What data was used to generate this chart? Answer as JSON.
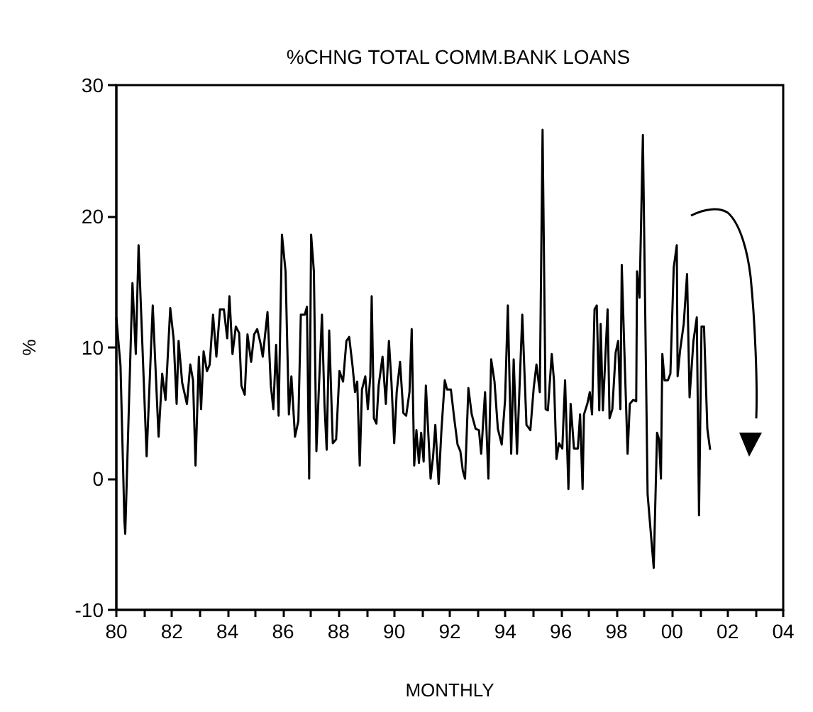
{
  "chart_data": {
    "type": "line",
    "title": "%CHNG TOTAL COMM.BANK LOANS",
    "xlabel": "MONTHLY",
    "ylabel": "%",
    "series": [
      {
        "color": "#000000",
        "x": [
          1980.0,
          1980.15,
          1980.29,
          1980.32,
          1980.58,
          1980.7,
          1980.8,
          1981.09,
          1981.31,
          1981.52,
          1981.65,
          1981.77,
          1981.94,
          1982.06,
          1982.17,
          1982.24,
          1982.37,
          1982.54,
          1982.66,
          1982.76,
          1982.85,
          1982.97,
          1983.05,
          1983.14,
          1983.26,
          1983.36,
          1983.48,
          1983.6,
          1983.73,
          1983.87,
          1983.99,
          1984.07,
          1984.18,
          1984.3,
          1984.42,
          1984.5,
          1984.62,
          1984.72,
          1984.85,
          1984.96,
          1985.07,
          1985.19,
          1985.27,
          1985.44,
          1985.56,
          1985.65,
          1985.75,
          1985.84,
          1985.96,
          1986.09,
          1986.21,
          1986.3,
          1986.43,
          1986.55,
          1986.64,
          1986.78,
          1986.86,
          1986.94,
          1987.01,
          1987.11,
          1987.2,
          1987.28,
          1987.4,
          1987.49,
          1987.57,
          1987.66,
          1987.79,
          1987.91,
          1988.03,
          1988.16,
          1988.28,
          1988.38,
          1988.5,
          1988.59,
          1988.67,
          1988.76,
          1988.84,
          1988.96,
          1989.05,
          1989.14,
          1989.19,
          1989.27,
          1989.36,
          1989.44,
          1989.58,
          1989.7,
          1989.81,
          1989.9,
          1990.0,
          1990.09,
          1990.21,
          1990.33,
          1990.43,
          1990.55,
          1990.63,
          1990.72,
          1990.8,
          1990.89,
          1990.97,
          1991.06,
          1991.14,
          1991.31,
          1991.4,
          1991.48,
          1991.6,
          1991.7,
          1991.82,
          1991.9,
          1992.04,
          1992.16,
          1992.28,
          1992.38,
          1992.47,
          1992.55,
          1992.67,
          1992.79,
          1992.93,
          1993.05,
          1993.13,
          1993.27,
          1993.39,
          1993.49,
          1993.61,
          1993.73,
          1993.87,
          1993.99,
          1994.09,
          1994.21,
          1994.3,
          1994.42,
          1994.61,
          1994.76,
          1994.9,
          1995.02,
          1995.12,
          1995.24,
          1995.34,
          1995.45,
          1995.53,
          1995.67,
          1995.75,
          1995.84,
          1995.93,
          1996.05,
          1996.15,
          1996.27,
          1996.35,
          1996.47,
          1996.61,
          1996.69,
          1996.78,
          1996.83,
          1996.95,
          1997.04,
          1997.12,
          1997.21,
          1997.29,
          1997.38,
          1997.43,
          1997.51,
          1997.68,
          1997.75,
          1997.85,
          1997.97,
          1998.06,
          1998.14,
          1998.19,
          1998.28,
          1998.4,
          1998.48,
          1998.6,
          1998.71,
          1998.74,
          1998.83,
          1998.95,
          1999.12,
          1999.34,
          1999.46,
          1999.53,
          1999.6,
          1999.65,
          1999.73,
          1999.85,
          1999.94,
          2000.06,
          2000.17,
          2000.2,
          2000.29,
          2000.42,
          2000.54,
          2000.63,
          2000.77,
          2000.89,
          2000.97,
          2001.06,
          2001.15,
          2001.27,
          2001.37
        ],
        "values": [
          12.3,
          8.6,
          -3.2,
          -4.2,
          14.9,
          9.5,
          17.8,
          1.7,
          13.2,
          3.2,
          8.0,
          6.0,
          13.0,
          10.7,
          5.7,
          10.5,
          7.3,
          5.7,
          8.7,
          7.5,
          1.0,
          9.3,
          5.3,
          9.7,
          8.2,
          8.7,
          12.5,
          9.3,
          12.9,
          12.9,
          10.7,
          13.9,
          9.5,
          11.6,
          11.1,
          7.1,
          6.4,
          11.0,
          8.9,
          11.0,
          11.4,
          10.3,
          9.3,
          12.7,
          7.1,
          5.3,
          10.2,
          4.8,
          18.6,
          15.8,
          4.9,
          7.8,
          3.2,
          4.4,
          12.5,
          12.5,
          13.1,
          0.0,
          18.6,
          15.8,
          2.1,
          6.4,
          12.5,
          5.7,
          2.2,
          11.3,
          2.7,
          3.0,
          8.2,
          7.4,
          10.5,
          10.8,
          8.6,
          6.6,
          7.4,
          1.0,
          6.8,
          7.8,
          5.3,
          7.8,
          13.9,
          4.6,
          4.2,
          7.1,
          9.3,
          5.7,
          10.5,
          7.4,
          2.7,
          6.6,
          8.9,
          5.0,
          4.8,
          6.6,
          11.4,
          1.0,
          3.7,
          1.2,
          3.5,
          1.3,
          7.1,
          0.0,
          1.7,
          4.1,
          -0.4,
          3.7,
          7.5,
          6.8,
          6.8,
          4.6,
          2.6,
          2.1,
          0.6,
          0.0,
          6.9,
          4.9,
          3.8,
          3.7,
          1.9,
          6.6,
          0.0,
          9.1,
          7.4,
          3.8,
          2.6,
          6.0,
          13.2,
          1.9,
          9.1,
          1.9,
          12.5,
          4.1,
          3.7,
          6.9,
          8.7,
          6.6,
          26.6,
          5.3,
          5.2,
          9.5,
          7.5,
          1.5,
          2.7,
          2.3,
          7.5,
          -0.8,
          5.7,
          2.3,
          2.3,
          4.9,
          -0.8,
          4.9,
          5.7,
          6.6,
          4.9,
          12.9,
          13.2,
          5.2,
          11.8,
          5.2,
          12.9,
          4.6,
          5.3,
          9.6,
          10.5,
          5.3,
          16.3,
          10.0,
          1.9,
          5.7,
          6.0,
          5.9,
          15.8,
          13.8,
          26.2,
          -1.2,
          -6.8,
          3.5,
          3.0,
          0.0,
          9.5,
          7.5,
          7.5,
          8.0,
          16.1,
          17.8,
          7.8,
          9.8,
          11.8,
          15.6,
          6.2,
          10.5,
          12.3,
          -2.8,
          11.6,
          11.6,
          3.8,
          2.2
        ]
      }
    ],
    "xlim": [
      1980,
      2004
    ],
    "xticks": [
      {
        "value": 1980,
        "label": "80"
      },
      {
        "value": 1981,
        "label": null
      },
      {
        "value": 1982,
        "label": "82"
      },
      {
        "value": 1983,
        "label": null
      },
      {
        "value": 1984,
        "label": "84"
      },
      {
        "value": 1985,
        "label": null
      },
      {
        "value": 1986,
        "label": "86"
      },
      {
        "value": 1987,
        "label": null
      },
      {
        "value": 1988,
        "label": "88"
      },
      {
        "value": 1989,
        "label": null
      },
      {
        "value": 1990,
        "label": "90"
      },
      {
        "value": 1991,
        "label": null
      },
      {
        "value": 1992,
        "label": "92"
      },
      {
        "value": 1993,
        "label": null
      },
      {
        "value": 1994,
        "label": "94"
      },
      {
        "value": 1995,
        "label": null
      },
      {
        "value": 1996,
        "label": "96"
      },
      {
        "value": 1997,
        "label": null
      },
      {
        "value": 1998,
        "label": "98"
      },
      {
        "value": 1999,
        "label": null
      },
      {
        "value": 2000,
        "label": "00"
      },
      {
        "value": 2001,
        "label": null
      },
      {
        "value": 2002,
        "label": "02"
      },
      {
        "value": 2003,
        "label": null
      },
      {
        "value": 2004,
        "label": "04"
      }
    ],
    "ylim": [
      -10,
      30
    ],
    "yticks": [
      -10,
      0,
      10,
      20,
      30
    ]
  }
}
